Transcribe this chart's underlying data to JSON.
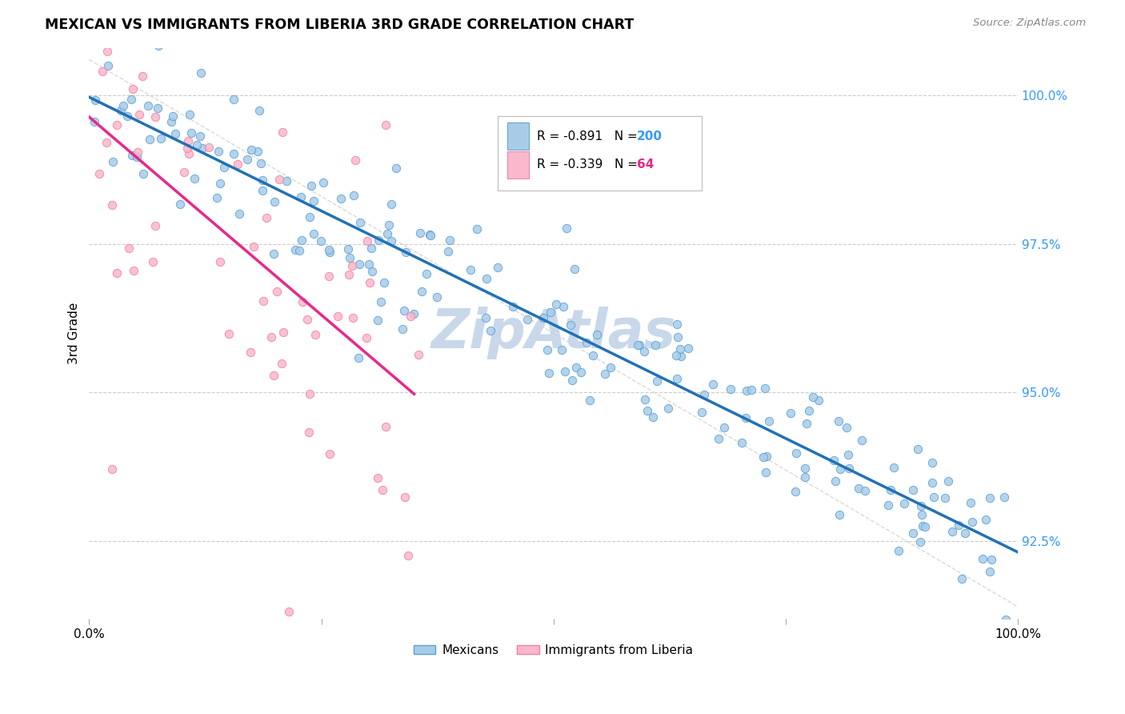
{
  "title": "MEXICAN VS IMMIGRANTS FROM LIBERIA 3RD GRADE CORRELATION CHART",
  "source": "Source: ZipAtlas.com",
  "ylabel": "3rd Grade",
  "right_yticks": [
    "100.0%",
    "97.5%",
    "95.0%",
    "92.5%"
  ],
  "right_ytick_vals": [
    1.0,
    0.975,
    0.95,
    0.925
  ],
  "xmin": 0.0,
  "xmax": 1.0,
  "ymin": 0.912,
  "ymax": 1.008,
  "blue_R": -0.891,
  "blue_N": 200,
  "pink_R": -0.339,
  "pink_N": 64,
  "blue_color": "#a8cce8",
  "pink_color": "#f9b8cb",
  "blue_edge_color": "#5a9fd4",
  "pink_edge_color": "#f080a0",
  "blue_line_color": "#2171b5",
  "pink_line_color": "#e7298a",
  "diagonal_line_color": "#d0d0d0",
  "watermark_color": "#c8d8ea",
  "legend_blue_label": "Mexicans",
  "legend_pink_label": "Immigrants from Liberia",
  "blue_seed": 42,
  "pink_seed": 17,
  "blue_intercept": 0.999,
  "blue_slope": -0.076,
  "blue_noise": 0.0065,
  "pink_intercept": 0.999,
  "pink_slope": -0.165,
  "pink_noise": 0.017
}
